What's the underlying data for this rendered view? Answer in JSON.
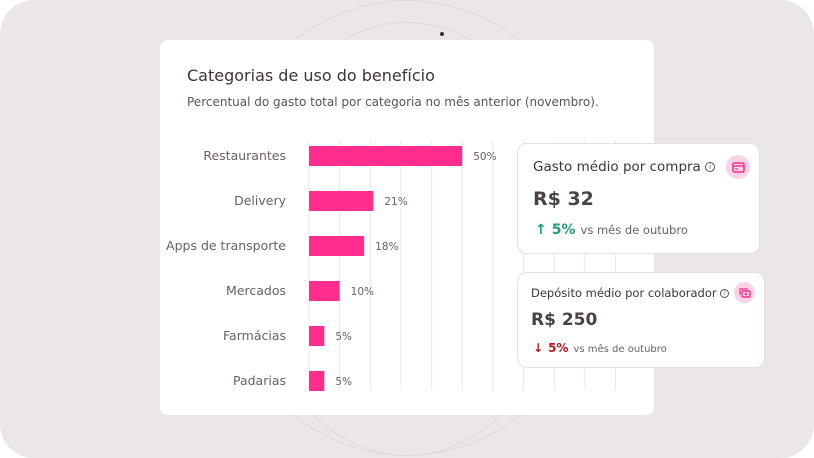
{
  "chart_data": {
    "type": "bar",
    "orientation": "horizontal",
    "title": "Categorias de uso do benefício",
    "subtitle": "Percentual do gasto total por categoria no mês anterior (novembro).",
    "categories": [
      "Restaurantes",
      "Delivery",
      "Apps de transporte",
      "Mercados",
      "Farmácias",
      "Padarias"
    ],
    "values": [
      50,
      21,
      18,
      10,
      5,
      5
    ],
    "labels": [
      "50%",
      "21%",
      "18%",
      "10%",
      "5%",
      "5%"
    ],
    "xlim": [
      0,
      100
    ],
    "grid": true,
    "bar_color": "#ff2d8c"
  },
  "kpis": [
    {
      "title": "Gasto médio por compra",
      "value": "R$ 32",
      "delta": "5%",
      "direction": "up",
      "comparison": "vs mês de outubro",
      "icon": "credit-card-icon",
      "delta_color": "#1f9e7a"
    },
    {
      "title": "Depósito médio por colaborador",
      "value": "R$ 250",
      "delta": "5%",
      "direction": "down",
      "comparison": "vs mês de outubro",
      "icon": "money-icon",
      "delta_color": "#c0141e"
    }
  ],
  "info_glyph": "i",
  "arrows": {
    "up": "↑",
    "down": "↓"
  }
}
